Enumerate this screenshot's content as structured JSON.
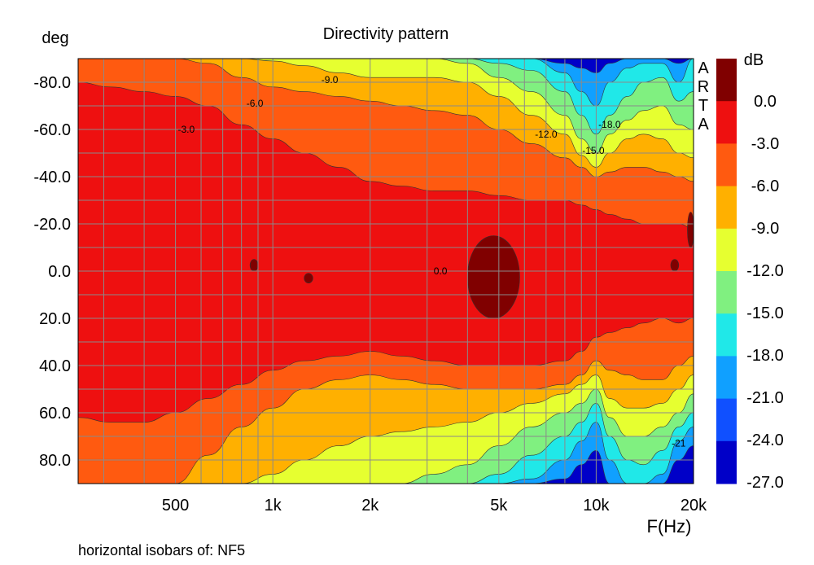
{
  "chart_data": {
    "type": "heatmap",
    "title": "Directivity pattern",
    "ylabel": "deg",
    "xlabel": "F(Hz)",
    "x_scale": "log",
    "xlim": [
      250,
      20000
    ],
    "ylim": [
      -90,
      90
    ],
    "y_inverted": true,
    "x_ticks": [
      {
        "value": 500,
        "label": "500"
      },
      {
        "value": 1000,
        "label": "1k"
      },
      {
        "value": 2000,
        "label": "2k"
      },
      {
        "value": 5000,
        "label": "5k"
      },
      {
        "value": 10000,
        "label": "10k"
      },
      {
        "value": 20000,
        "label": "20k"
      }
    ],
    "y_ticks": [
      {
        "value": -80,
        "label": "-80.0"
      },
      {
        "value": -60,
        "label": "-60.0"
      },
      {
        "value": -40,
        "label": "-40.0"
      },
      {
        "value": -20,
        "label": "-20.0"
      },
      {
        "value": 0,
        "label": "0.0"
      },
      {
        "value": 20,
        "label": "20.0"
      },
      {
        "value": 40,
        "label": "40.0"
      },
      {
        "value": 60,
        "label": "60.0"
      },
      {
        "value": 80,
        "label": "80.0"
      }
    ],
    "grid": true,
    "colorbar": {
      "unit": "dB",
      "levels": [
        "0.0",
        "-3.0",
        "-6.0",
        "-9.0",
        "-12.0",
        "-15.0",
        "-18.0",
        "-21.0",
        "-24.0",
        "-27.0"
      ],
      "colors": [
        "#800000",
        "#ee1010",
        "#ff5a10",
        "#ffb000",
        "#e6ff30",
        "#80f080",
        "#20e8e8",
        "#10a0ff",
        "#1050ff",
        "#0000c8"
      ]
    },
    "contour_labels": [
      {
        "text": "-9.0",
        "freq": 1500,
        "deg": -81
      },
      {
        "text": "-6.0",
        "freq": 880,
        "deg": -71
      },
      {
        "text": "-3.0",
        "freq": 540,
        "deg": -60
      },
      {
        "text": "-12.0",
        "freq": 7000,
        "deg": -58
      },
      {
        "text": "-18.0",
        "freq": 11000,
        "deg": -62
      },
      {
        "text": "-15.0",
        "freq": 9800,
        "deg": -51
      },
      {
        "text": "0.0",
        "freq": 3300,
        "deg": 0
      },
      {
        "text": "-21",
        "freq": 18000,
        "deg": 73
      }
    ],
    "series_freqs": [
      250,
      315,
      400,
      500,
      630,
      800,
      1000,
      1250,
      1600,
      2000,
      2500,
      3150,
      4000,
      5000,
      6300,
      8000,
      9000,
      10000,
      11000,
      12500,
      14000,
      16000,
      18000,
      20000
    ],
    "upper_boundaries_deg": [
      [
        -90,
        -90,
        -90,
        -90,
        -90,
        -89,
        -88,
        -87,
        -86,
        -85,
        -84,
        -83,
        -85,
        -87,
        -90,
        -90,
        -90,
        -90,
        -90,
        -90,
        -90,
        -90,
        -90,
        -90
      ],
      [
        -88,
        -87,
        -86,
        -88,
        -86,
        -84,
        -80,
        -80,
        -81,
        -80,
        -80,
        -82,
        -86,
        -88,
        -89,
        -90,
        -90,
        -90,
        -90,
        -90,
        -90,
        -90,
        -90,
        -90
      ],
      [
        -77,
        -75,
        -72,
        -69,
        -68,
        -66,
        -63,
        -64,
        -70,
        -70,
        -75,
        -79,
        -82,
        -85,
        -86,
        -88,
        -90,
        -90,
        -90,
        -90,
        -90,
        -90,
        -90,
        -90
      ],
      [
        -68,
        -67,
        -66,
        -65,
        -60,
        -55,
        -52,
        -50,
        -55,
        -60,
        -63,
        -68,
        -73,
        -77,
        -79,
        -82,
        -85,
        -88,
        -89,
        -89,
        -89,
        -90,
        -90,
        -90
      ],
      [
        -68,
        -67,
        -66,
        -65,
        -60,
        -55,
        -52,
        -47,
        -46,
        -47,
        -50,
        -55,
        -60,
        -68,
        -70,
        -73,
        -77,
        -80,
        -80,
        -82,
        -85,
        -88,
        -90,
        -90
      ],
      [
        -68,
        -67,
        -66,
        -65,
        -60,
        -55,
        -52,
        -47,
        -46,
        -43,
        -43,
        -45,
        -50,
        -55,
        -60,
        -65,
        -70,
        -68,
        -66,
        -70,
        -75,
        -80,
        -85,
        -90
      ],
      [
        -68,
        -67,
        -66,
        -65,
        -60,
        -55,
        -52,
        -47,
        -46,
        -43,
        -40,
        -38,
        -40,
        -45,
        -50,
        -55,
        -55,
        -50,
        -48,
        -58,
        -65,
        -72,
        -80,
        -90
      ],
      [
        -68,
        -67,
        -66,
        -65,
        -60,
        -55,
        -52,
        -47,
        -46,
        -43,
        -40,
        -38,
        -36,
        -35,
        -38,
        -42,
        -45,
        -40,
        -40,
        -48,
        -55,
        -62,
        -70,
        -80
      ],
      [
        -68,
        -67,
        -66,
        -65,
        -60,
        -55,
        -52,
        -47,
        -46,
        -43,
        -38,
        -36,
        -34,
        -32,
        -33,
        -35,
        -32,
        -31,
        -33,
        -36,
        -40,
        -45,
        -50,
        -60
      ],
      [
        -68,
        -67,
        -66,
        -65,
        -60,
        -55,
        -52,
        -47,
        -46,
        -43,
        -38,
        -36,
        -34,
        -32,
        -31,
        -30,
        -27,
        -25,
        -24,
        -25,
        -28,
        -30,
        -33,
        -40
      ],
      [
        -68,
        -67,
        -66,
        -65,
        -60,
        -55,
        -52,
        -47,
        -46,
        -43,
        -38,
        -36,
        -34,
        -32,
        -31,
        -30,
        -24,
        -19,
        -18,
        -18,
        -17,
        -16,
        -13,
        -10
      ]
    ],
    "lower_boundaries_deg": [
      [
        90,
        90,
        90,
        90,
        90,
        90,
        90,
        90,
        90,
        90,
        90,
        90,
        90,
        90,
        90,
        90,
        90,
        90,
        90,
        90,
        90,
        90,
        90,
        90
      ],
      [
        90,
        90,
        90,
        90,
        90,
        90,
        90,
        90,
        90,
        90,
        90,
        90,
        90,
        90,
        90,
        90,
        90,
        90,
        90,
        90,
        90,
        90,
        90,
        90
      ],
      [
        90,
        90,
        90,
        90,
        90,
        90,
        90,
        90,
        90,
        90,
        90,
        90,
        90,
        90,
        90,
        90,
        90,
        90,
        90,
        90,
        90,
        90,
        90,
        90
      ],
      [
        90,
        90,
        90,
        90,
        90,
        90,
        90,
        90,
        90,
        90,
        90,
        90,
        90,
        90,
        90,
        90,
        90,
        90,
        90,
        90,
        90,
        90,
        90,
        90
      ],
      [
        90,
        90,
        90,
        90,
        90,
        90,
        90,
        90,
        90,
        90,
        90,
        90,
        90,
        90,
        90,
        90,
        90,
        90,
        90,
        90,
        90,
        90,
        90,
        90
      ],
      [
        90,
        90,
        90,
        90,
        90,
        90,
        90,
        90,
        90,
        90,
        90,
        90,
        90,
        90,
        90,
        90,
        90,
        90,
        90,
        90,
        90,
        90,
        90,
        90
      ],
      [
        90,
        90,
        90,
        90,
        90,
        90,
        90,
        90,
        90,
        90,
        90,
        90,
        90,
        90,
        90,
        90,
        90,
        90,
        90,
        90,
        90,
        90,
        90,
        90
      ],
      [
        90,
        90,
        90,
        90,
        90,
        90,
        90,
        90,
        90,
        90,
        90,
        90,
        90,
        90,
        90,
        90,
        90,
        90,
        90,
        90,
        90,
        90,
        90,
        90
      ],
      [
        90,
        90,
        90,
        90,
        90,
        90,
        90,
        90,
        90,
        90,
        90,
        90,
        90,
        90,
        90,
        90,
        90,
        90,
        90,
        90,
        90,
        90,
        90,
        90
      ],
      [
        90,
        90,
        90,
        90,
        90,
        90,
        90,
        90,
        90,
        90,
        90,
        90,
        90,
        90,
        90,
        90,
        90,
        90,
        90,
        90,
        90,
        90,
        90,
        90
      ],
      [
        90,
        90,
        90,
        90,
        90,
        90,
        90,
        90,
        90,
        90,
        90,
        90,
        90,
        90,
        90,
        90,
        90,
        90,
        90,
        90,
        90,
        90,
        90,
        90
      ]
    ],
    "upper_boundaries_note_removed": true,
    "level_bands_deg": [
      {
        "level": "-27.0",
        "upper": [
          -90,
          -90,
          -90,
          -90,
          -90,
          -90,
          -90,
          -90,
          -90,
          -90,
          -90,
          -90,
          -90,
          -90,
          -90,
          -90,
          -90,
          -90,
          -90,
          -90,
          -90,
          -90,
          -90,
          -90
        ],
        "lower": [
          -90,
          -90,
          -90,
          -90,
          -90,
          -90,
          -90,
          -90,
          -90,
          -90,
          -90,
          -90,
          -90,
          -90,
          -90,
          -90,
          -90,
          -90,
          -90,
          -90,
          -90,
          -90,
          -90,
          -90
        ]
      }
    ],
    "isobars": {
      "upper": {
        "-21.0": [
          -90,
          -90,
          -90,
          -90,
          -90,
          -90,
          -90,
          -90,
          -90,
          -90,
          -90,
          -90,
          -90,
          -90,
          -90,
          -88,
          -86,
          -84,
          -88,
          -90,
          -90,
          -90,
          -88,
          -90
        ],
        "-18.0": [
          -90,
          -90,
          -90,
          -90,
          -90,
          -90,
          -90,
          -90,
          -90,
          -90,
          -90,
          -90,
          -90,
          -90,
          -90,
          -84,
          -76,
          -70,
          -80,
          -86,
          -88,
          -88,
          -80,
          -90
        ],
        "-15.0": [
          -90,
          -90,
          -90,
          -90,
          -90,
          -90,
          -90,
          -90,
          -90,
          -90,
          -90,
          -90,
          -90,
          -88,
          -85,
          -76,
          -66,
          -58,
          -66,
          -74,
          -80,
          -82,
          -72,
          -76
        ],
        "-12.0": [
          -90,
          -90,
          -90,
          -90,
          -90,
          -90,
          -90,
          -90,
          -90,
          -90,
          -90,
          -90,
          -88,
          -82,
          -76,
          -66,
          -56,
          -50,
          -58,
          -64,
          -68,
          -70,
          -62,
          -60
        ],
        "-9.0": [
          -90,
          -90,
          -90,
          -90,
          -90,
          -90,
          -89,
          -87,
          -84,
          -82,
          -82,
          -82,
          -80,
          -74,
          -66,
          -58,
          -49,
          -44,
          -50,
          -56,
          -58,
          -56,
          -50,
          -48
        ],
        "-6.0": [
          -90,
          -90,
          -90,
          -90,
          -88,
          -82,
          -78,
          -76,
          -74,
          -72,
          -70,
          -68,
          -66,
          -60,
          -54,
          -48,
          -44,
          -40,
          -42,
          -44,
          -44,
          -42,
          -40,
          -38
        ],
        "-3.0": [
          -80,
          -78,
          -76,
          -74,
          -70,
          -62,
          -56,
          -50,
          -44,
          -38,
          -36,
          -34,
          -34,
          -32,
          -30,
          -30,
          -28,
          -26,
          -24,
          -22,
          -20,
          -20,
          -20,
          -18
        ]
      },
      "lower": {
        "-3.0": [
          62,
          64,
          64,
          60,
          54,
          48,
          42,
          38,
          36,
          34,
          36,
          38,
          40,
          40,
          40,
          38,
          34,
          28,
          26,
          24,
          22,
          20,
          22,
          20
        ],
        "-6.0": [
          90,
          90,
          90,
          90,
          78,
          66,
          58,
          50,
          46,
          44,
          46,
          48,
          50,
          50,
          50,
          48,
          44,
          38,
          42,
          44,
          46,
          46,
          40,
          36
        ],
        "-9.0": [
          90,
          90,
          90,
          90,
          90,
          90,
          86,
          80,
          74,
          70,
          68,
          66,
          64,
          60,
          56,
          52,
          48,
          44,
          54,
          58,
          58,
          56,
          50,
          44
        ],
        "-12.0": [
          90,
          90,
          90,
          90,
          90,
          90,
          90,
          90,
          90,
          90,
          90,
          86,
          82,
          74,
          66,
          60,
          56,
          50,
          62,
          70,
          70,
          66,
          60,
          52
        ],
        "-15.0": [
          90,
          90,
          90,
          90,
          90,
          90,
          90,
          90,
          90,
          90,
          90,
          90,
          90,
          86,
          78,
          70,
          64,
          56,
          70,
          80,
          82,
          76,
          66,
          60
        ],
        "-18.0": [
          90,
          90,
          90,
          90,
          90,
          90,
          90,
          90,
          90,
          90,
          90,
          90,
          90,
          90,
          88,
          80,
          72,
          64,
          80,
          90,
          90,
          86,
          72,
          66
        ],
        "-21.0": [
          90,
          90,
          90,
          90,
          90,
          90,
          90,
          90,
          90,
          90,
          90,
          90,
          90,
          90,
          90,
          88,
          82,
          76,
          90,
          90,
          90,
          90,
          80,
          74
        ]
      }
    },
    "peak_regions": [
      {
        "freq_min": 4000,
        "freq_max": 5800,
        "deg_min": -15,
        "deg_max": 20,
        "level": "0.0"
      },
      {
        "freq_min": 850,
        "freq_max": 900,
        "deg_min": -5,
        "deg_max": 0,
        "level": "0.0"
      },
      {
        "freq_min": 1250,
        "freq_max": 1330,
        "deg_min": 1,
        "deg_max": 5,
        "level": "0.0"
      },
      {
        "freq_min": 17000,
        "freq_max": 18000,
        "deg_min": -5,
        "deg_max": 0,
        "level": "0.0"
      },
      {
        "freq_min": 19200,
        "freq_max": 20000,
        "deg_min": -25,
        "deg_max": -10,
        "level": "0.0"
      }
    ]
  },
  "watermark": [
    "A",
    "R",
    "T",
    "A"
  ],
  "footer": "horizontal isobars of: NF5"
}
